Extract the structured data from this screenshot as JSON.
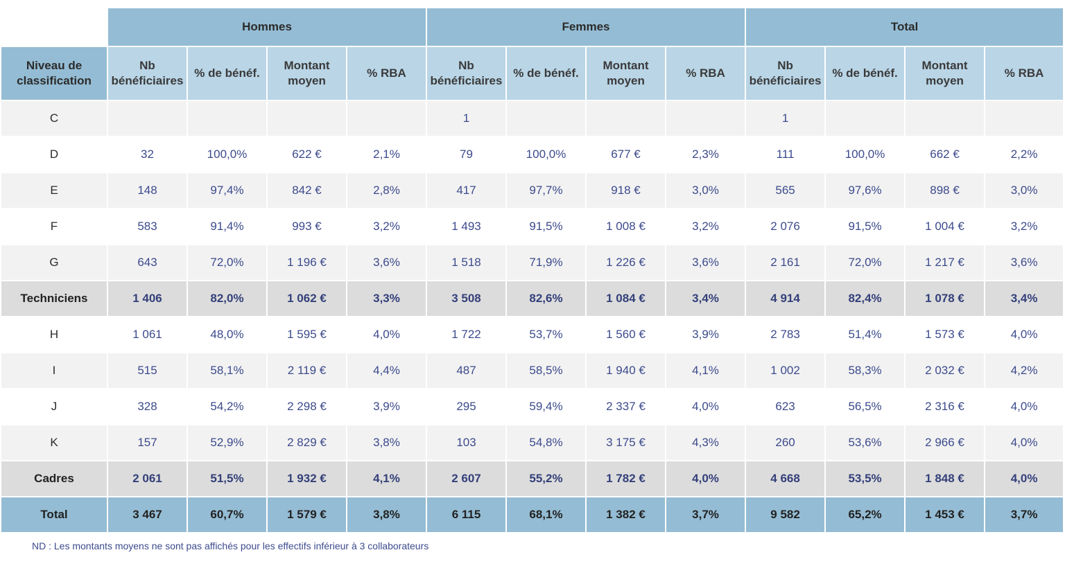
{
  "groups": {
    "hommes": "Hommes",
    "femmes": "Femmes",
    "total": "Total"
  },
  "row_header": "Niveau de classification",
  "subheaders": {
    "nb": "Nb bénéficiaires",
    "pct_benef": "% de bénéf.",
    "montant": "Montant moyen",
    "rba": "% RBA"
  },
  "rows": [
    {
      "label": "C",
      "kind": "data",
      "cells": [
        "",
        "",
        "",
        "",
        "1",
        "",
        "",
        "",
        "1",
        "",
        "",
        ""
      ]
    },
    {
      "label": "D",
      "kind": "data",
      "cells": [
        "32",
        "100,0%",
        "622 €",
        "2,1%",
        "79",
        "100,0%",
        "677 €",
        "2,3%",
        "111",
        "100,0%",
        "662 €",
        "2,2%"
      ]
    },
    {
      "label": "E",
      "kind": "data",
      "cells": [
        "148",
        "97,4%",
        "842 €",
        "2,8%",
        "417",
        "97,7%",
        "918 €",
        "3,0%",
        "565",
        "97,6%",
        "898 €",
        "3,0%"
      ]
    },
    {
      "label": "F",
      "kind": "data",
      "cells": [
        "583",
        "91,4%",
        "993 €",
        "3,2%",
        "1 493",
        "91,5%",
        "1 008 €",
        "3,2%",
        "2 076",
        "91,5%",
        "1 004 €",
        "3,2%"
      ]
    },
    {
      "label": "G",
      "kind": "data",
      "cells": [
        "643",
        "72,0%",
        "1 196 €",
        "3,6%",
        "1 518",
        "71,9%",
        "1 226 €",
        "3,6%",
        "2 161",
        "72,0%",
        "1 217 €",
        "3,6%"
      ]
    },
    {
      "label": "Techniciens",
      "kind": "sum",
      "cells": [
        "1 406",
        "82,0%",
        "1 062 €",
        "3,3%",
        "3 508",
        "82,6%",
        "1 084 €",
        "3,4%",
        "4 914",
        "82,4%",
        "1 078 €",
        "3,4%"
      ]
    },
    {
      "label": "H",
      "kind": "data",
      "cells": [
        "1 061",
        "48,0%",
        "1 595 €",
        "4,0%",
        "1 722",
        "53,7%",
        "1 560 €",
        "3,9%",
        "2 783",
        "51,4%",
        "1 573 €",
        "4,0%"
      ]
    },
    {
      "label": "I",
      "kind": "data",
      "cells": [
        "515",
        "58,1%",
        "2 119 €",
        "4,4%",
        "487",
        "58,5%",
        "1 940 €",
        "4,1%",
        "1 002",
        "58,3%",
        "2 032 €",
        "4,2%"
      ]
    },
    {
      "label": "J",
      "kind": "data",
      "cells": [
        "328",
        "54,2%",
        "2 298 €",
        "3,9%",
        "295",
        "59,4%",
        "2 337 €",
        "4,0%",
        "623",
        "56,5%",
        "2 316 €",
        "4,0%"
      ]
    },
    {
      "label": "K",
      "kind": "data",
      "cells": [
        "157",
        "52,9%",
        "2 829 €",
        "3,8%",
        "103",
        "54,8%",
        "3 175 €",
        "4,3%",
        "260",
        "53,6%",
        "2 966 €",
        "4,0%"
      ]
    },
    {
      "label": "Cadres",
      "kind": "sum",
      "cells": [
        "2 061",
        "51,5%",
        "1 932 €",
        "4,1%",
        "2 607",
        "55,2%",
        "1 782 €",
        "4,0%",
        "4 668",
        "53,5%",
        "1 848 €",
        "4,0%"
      ]
    },
    {
      "label": "Total",
      "kind": "total",
      "cells": [
        "3 467",
        "60,7%",
        "1 579 €",
        "3,8%",
        "6 115",
        "68,1%",
        "1 382 €",
        "3,7%",
        "9 582",
        "65,2%",
        "1 453 €",
        "3,7%"
      ]
    }
  ],
  "footnote": "ND : Les montants moyens ne sont pas affichés pour les effectifs inférieur à 3 collaborateurs"
}
